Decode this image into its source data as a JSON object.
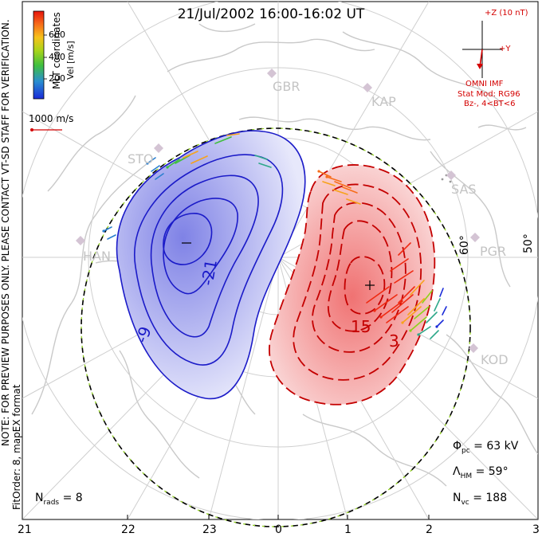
{
  "title": "21/Jul/2002  16:00-16:02  UT",
  "colorbar": {
    "title": "Vel [m/s]",
    "ticks": [
      "600",
      "400",
      "200"
    ],
    "colors": [
      "#1a2bd8",
      "#2a7fd0",
      "#2ea88a",
      "#3fbf3f",
      "#8fd11a",
      "#e2d018",
      "#f7a21a",
      "#f76d1a",
      "#ef2a12"
    ]
  },
  "mlt_label": "MLT coordinates",
  "vector_scale": "1000 m/s",
  "imf": {
    "z_label": "+Z (10 nT)",
    "y_label": "+Y",
    "source": "OMNI IMF",
    "model": "Stat Mod: RG96",
    "condition": "Bz-, 4<BT<6"
  },
  "watermark": "NOTE: FOR PREVIEW PURPOSES ONLY. PLEASE CONTACT VT-SD STAFF FOR VERIFICATION.",
  "fit_order": "FitOrder: 8, mapEX format",
  "stations": [
    "GBR",
    "KAP",
    "SAS",
    "PGR",
    "KOD",
    "HAN",
    "STO"
  ],
  "lat_labels": [
    "60°",
    "50°"
  ],
  "contours": {
    "negative_labels": [
      "-21",
      "-9"
    ],
    "positive_labels": [
      "15",
      "3"
    ],
    "min_marker": "-",
    "max_marker": "+"
  },
  "stats": {
    "phi_label": "Φ",
    "phi_sub": "pc",
    "phi_value": "= 63 kV",
    "lambda_label": "Λ",
    "lambda_sub": "HM",
    "lambda_value": "= 59°",
    "nvc_label": "N",
    "nvc_sub": "vc",
    "nvc_value": "= 188",
    "nrads_label": "N",
    "nrads_sub": "rads",
    "nrads_value": "= 8"
  },
  "mlt_ticks": [
    "21",
    "22",
    "23",
    "0",
    "1",
    "2",
    "3"
  ]
}
